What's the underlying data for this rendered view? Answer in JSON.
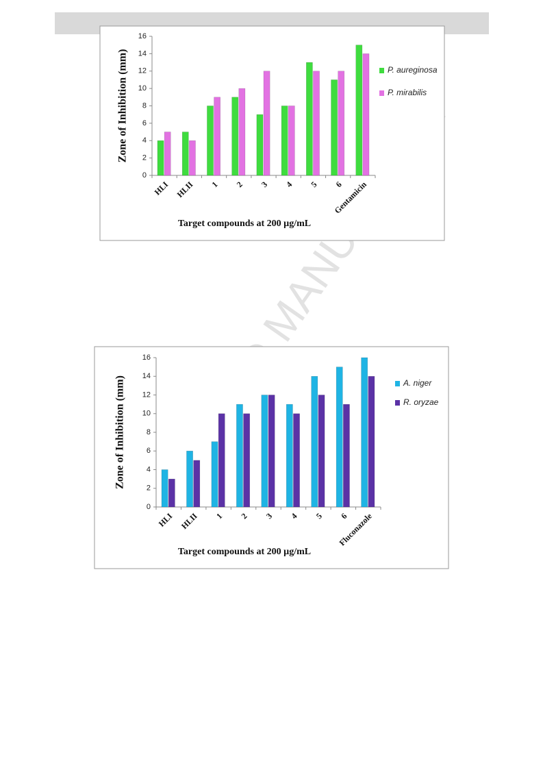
{
  "watermark": "ACCEPTED MANUSCRIPT",
  "chart_data": [
    {
      "type": "bar",
      "y_axis_label": "Zone of Inhibition (mm)",
      "x_axis_label": "Target compounds at 200 µg/mL",
      "categories": [
        "HLI",
        "HLII",
        "1",
        "2",
        "3",
        "4",
        "5",
        "6",
        "Gentamicin"
      ],
      "series": [
        {
          "name": "P. aureginosa",
          "color": "#3fdc3f",
          "values": [
            4,
            5,
            8,
            9,
            7,
            8,
            13,
            11,
            15
          ]
        },
        {
          "name": "P. mirabilis",
          "color": "#e272e2",
          "values": [
            5,
            4,
            9,
            10,
            12,
            8,
            12,
            12,
            14
          ]
        }
      ],
      "ylim": [
        0,
        16
      ],
      "yticks": [
        0,
        2,
        4,
        6,
        8,
        10,
        12,
        14,
        16
      ],
      "legend": "right"
    },
    {
      "type": "bar",
      "y_axis_label": "Zone of Inhibition (mm)",
      "x_axis_label": "Target compounds at 200 µg/mL",
      "categories": [
        "HLI",
        "HLII",
        "1",
        "2",
        "3",
        "4",
        "5",
        "6",
        "Fluconazole"
      ],
      "series": [
        {
          "name": "A. niger",
          "color": "#1fb4e4",
          "values": [
            4,
            6,
            7,
            11,
            12,
            11,
            14,
            15,
            16
          ]
        },
        {
          "name": "R. oryzae",
          "color": "#5b32a6",
          "values": [
            3,
            5,
            10,
            10,
            12,
            10,
            12,
            11,
            14
          ]
        }
      ],
      "ylim": [
        0,
        16
      ],
      "yticks": [
        0,
        2,
        4,
        6,
        8,
        10,
        12,
        14,
        16
      ],
      "legend": "right"
    }
  ]
}
